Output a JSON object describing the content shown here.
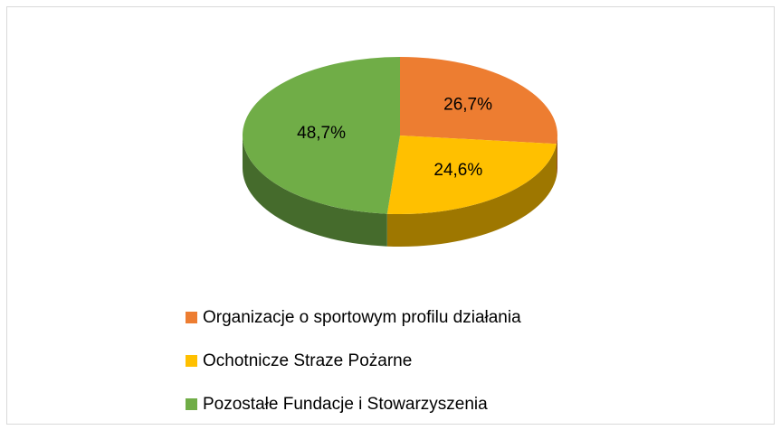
{
  "chart_data": {
    "type": "pie",
    "categories": [
      "Organizacje o sportowym profilu działania",
      "Ochotnicze Straze Pożarne",
      "Pozostałe Fundacje i Stowarzyszenia"
    ],
    "values": [
      26.7,
      24.6,
      48.7
    ],
    "value_labels": [
      "26,7%",
      "24,6%",
      "48,7%"
    ],
    "colors": [
      "#ed7d31",
      "#ffc000",
      "#70ad47"
    ],
    "legend": "bottom"
  }
}
